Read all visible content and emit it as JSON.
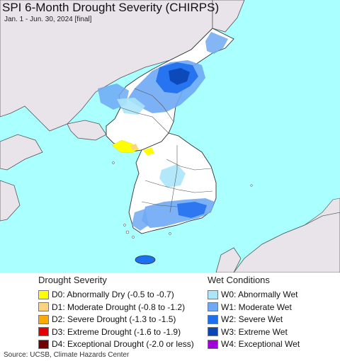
{
  "map": {
    "title": "SPI 6-Month Drought Severity (CHIRPS)",
    "subtitle": "Jan. 1 - Jun. 30, 2024 [final]",
    "colors": {
      "ocean": "#aaffff",
      "land": "#ffffff",
      "foreign_land": "#e9e4ea",
      "border": "#333333"
    }
  },
  "legend": {
    "drought": {
      "heading": "Drought Severity",
      "items": [
        {
          "label": "D0: Abnormally Dry (-0.5 to -0.7)",
          "color": "#ffff00"
        },
        {
          "label": "D1: Moderate Drought (-0.8 to -1.2)",
          "color": "#fcd37f"
        },
        {
          "label": "D2: Severe Drought (-1.3 to -1.5)",
          "color": "#ffaa00"
        },
        {
          "label": "D3: Extreme Drought (-1.6 to -1.9)",
          "color": "#e60000"
        },
        {
          "label": "D4: Exceptional Drought (-2.0 or less)",
          "color": "#730000"
        }
      ]
    },
    "wet": {
      "heading": "Wet Conditions",
      "items": [
        {
          "label": "W0: Abnormally Wet",
          "color": "#aae6fa"
        },
        {
          "label": "W1: Moderate Wet",
          "color": "#6fa9f5"
        },
        {
          "label": "W2: Severe Wet",
          "color": "#1e6ef0"
        },
        {
          "label": "W3: Extreme Wet",
          "color": "#0a46b4"
        },
        {
          "label": "W4: Exceptional Wet",
          "color": "#a000dc"
        }
      ]
    }
  },
  "source": "Source: UCSB, Climate Hazards Center"
}
